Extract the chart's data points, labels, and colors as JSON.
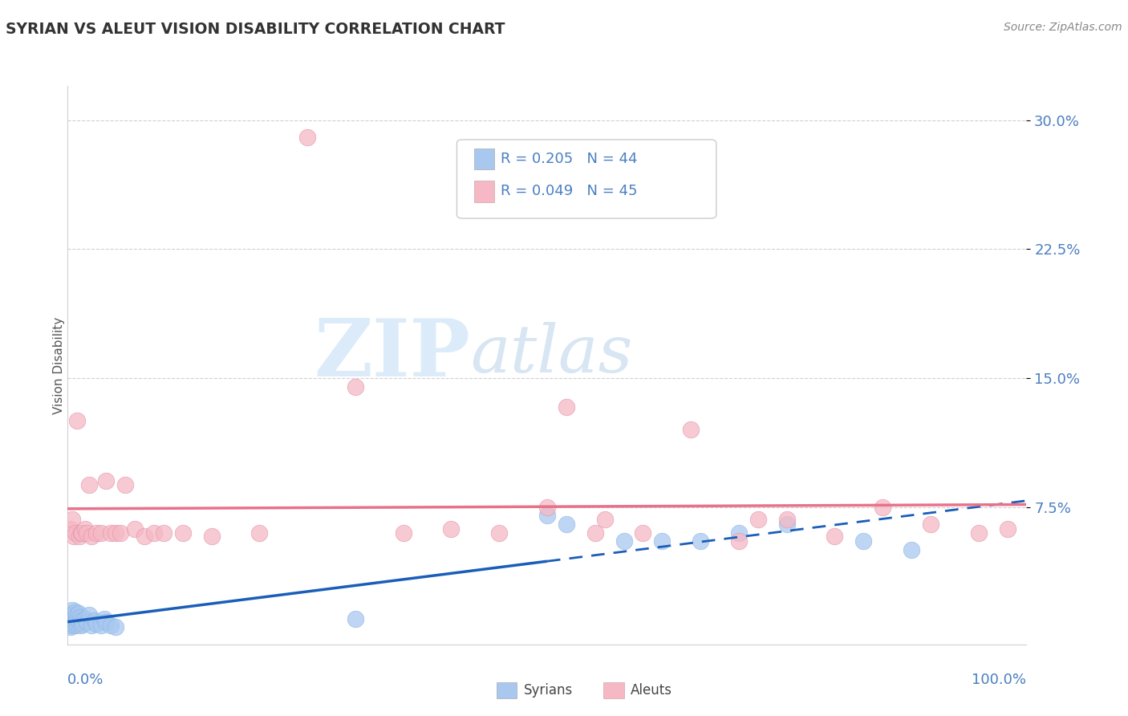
{
  "title": "SYRIAN VS ALEUT VISION DISABILITY CORRELATION CHART",
  "source": "Source: ZipAtlas.com",
  "ylabel": "Vision Disability",
  "xlim": [
    0.0,
    1.0
  ],
  "ylim": [
    -0.005,
    0.32
  ],
  "syrian_color": "#a8c8f0",
  "aleut_color": "#f5b8c4",
  "syrian_line_color": "#1a5eb8",
  "aleut_line_color": "#e8728a",
  "syrian_R": 0.205,
  "syrian_N": 44,
  "aleut_R": 0.049,
  "aleut_N": 45,
  "legend_label_syrian": "Syrians",
  "legend_label_aleut": "Aleuts",
  "watermark_zip": "ZIP",
  "watermark_atlas": "atlas",
  "ytick_vals": [
    0.075,
    0.15,
    0.225,
    0.3
  ],
  "ytick_labels": [
    "7.5%",
    "15.0%",
    "22.5%",
    "30.0%"
  ],
  "syrian_x": [
    0.002,
    0.003,
    0.003,
    0.004,
    0.004,
    0.005,
    0.005,
    0.006,
    0.006,
    0.007,
    0.007,
    0.008,
    0.008,
    0.009,
    0.009,
    0.01,
    0.01,
    0.011,
    0.012,
    0.013,
    0.014,
    0.015,
    0.016,
    0.018,
    0.02,
    0.022,
    0.025,
    0.028,
    0.03,
    0.035,
    0.038,
    0.04,
    0.045,
    0.05,
    0.3,
    0.5,
    0.52,
    0.58,
    0.62,
    0.66,
    0.7,
    0.75,
    0.83,
    0.88
  ],
  "syrian_y": [
    0.008,
    0.005,
    0.012,
    0.006,
    0.01,
    0.007,
    0.015,
    0.009,
    0.013,
    0.008,
    0.011,
    0.006,
    0.014,
    0.009,
    0.012,
    0.007,
    0.01,
    0.013,
    0.008,
    0.011,
    0.006,
    0.009,
    0.007,
    0.01,
    0.008,
    0.012,
    0.006,
    0.009,
    0.007,
    0.006,
    0.01,
    0.008,
    0.006,
    0.005,
    0.01,
    0.07,
    0.065,
    0.055,
    0.055,
    0.055,
    0.06,
    0.065,
    0.055,
    0.05
  ],
  "aleut_x": [
    0.003,
    0.005,
    0.006,
    0.008,
    0.01,
    0.012,
    0.014,
    0.015,
    0.018,
    0.02,
    0.022,
    0.025,
    0.03,
    0.035,
    0.04,
    0.045,
    0.05,
    0.055,
    0.06,
    0.07,
    0.08,
    0.09,
    0.1,
    0.12,
    0.15,
    0.2,
    0.25,
    0.3,
    0.35,
    0.4,
    0.45,
    0.5,
    0.52,
    0.55,
    0.56,
    0.6,
    0.65,
    0.7,
    0.72,
    0.75,
    0.8,
    0.85,
    0.9,
    0.95,
    0.98
  ],
  "aleut_y": [
    0.062,
    0.068,
    0.058,
    0.06,
    0.125,
    0.058,
    0.06,
    0.06,
    0.062,
    0.06,
    0.088,
    0.058,
    0.06,
    0.06,
    0.09,
    0.06,
    0.06,
    0.06,
    0.088,
    0.062,
    0.058,
    0.06,
    0.06,
    0.06,
    0.058,
    0.06,
    0.29,
    0.145,
    0.06,
    0.062,
    0.06,
    0.075,
    0.133,
    0.06,
    0.068,
    0.06,
    0.12,
    0.055,
    0.068,
    0.068,
    0.058,
    0.075,
    0.065,
    0.06,
    0.062
  ]
}
